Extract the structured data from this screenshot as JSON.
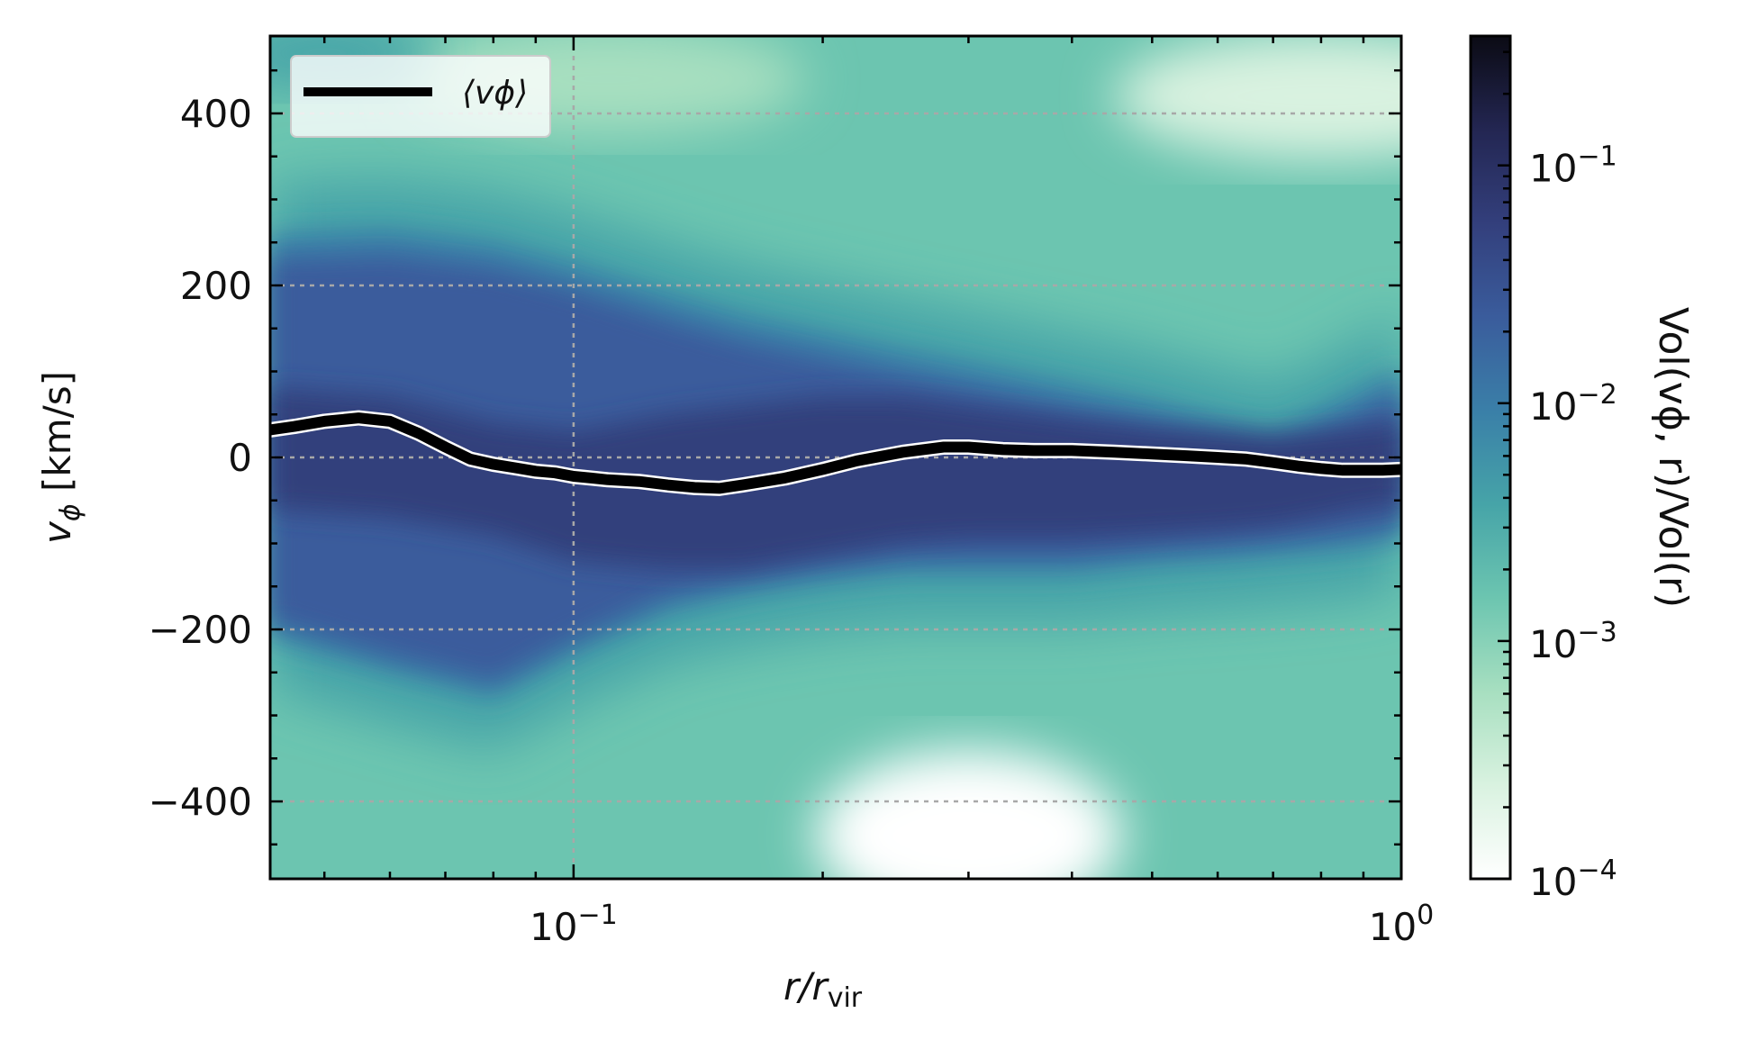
{
  "chart_data": {
    "type": "heatmap",
    "xscale": "log",
    "xlim": [
      0.043,
      1.0
    ],
    "ylim": [
      -490,
      490
    ],
    "x_ticks": [
      {
        "value": 0.1,
        "base": "10",
        "exp": "−1"
      },
      {
        "value": 1.0,
        "base": "10",
        "exp": "0"
      }
    ],
    "y_ticks": [
      {
        "value": 400,
        "label": "400"
      },
      {
        "value": 200,
        "label": "200"
      },
      {
        "value": 0,
        "label": "0"
      },
      {
        "value": -200,
        "label": "−200"
      },
      {
        "value": -400,
        "label": "−400"
      }
    ],
    "grid": true,
    "xlabel": {
      "main": "r/r",
      "sub": "vir"
    },
    "ylabel": {
      "main": "v",
      "sub": "ϕ",
      "unit": " [km/s]"
    },
    "colorbar": {
      "scale": "log",
      "range": [
        0.0001,
        0.35
      ],
      "ticks": [
        {
          "value": 0.0001,
          "base": "10",
          "exp": "−4"
        },
        {
          "value": 0.001,
          "base": "10",
          "exp": "−3"
        },
        {
          "value": 0.01,
          "base": "10",
          "exp": "−2"
        },
        {
          "value": 0.1,
          "base": "10",
          "exp": "−1"
        }
      ],
      "label": "Vol(vϕ, r)/Vol(r)",
      "colors": [
        "#ffffff",
        "#d9f2e0",
        "#a7dfc0",
        "#6cc5b0",
        "#46a4a8",
        "#3a7fa8",
        "#3a5c9c",
        "#333f7c",
        "#232652",
        "#0b0b14"
      ]
    },
    "band": {
      "description_free": true,
      "x": [
        0.043,
        0.06,
        0.08,
        0.1,
        0.13,
        0.16,
        0.2,
        0.25,
        0.3,
        0.4,
        0.5,
        0.6,
        0.7,
        0.8,
        0.9,
        1.0
      ],
      "upper": [
        260,
        265,
        250,
        225,
        190,
        165,
        145,
        125,
        110,
        85,
        65,
        45,
        30,
        55,
        80,
        105
      ],
      "lower": [
        -210,
        -250,
        -280,
        -230,
        -180,
        -160,
        -145,
        -135,
        -135,
        -135,
        -125,
        -120,
        -115,
        -110,
        -105,
        -95
      ],
      "core_upper": [
        80,
        70,
        40,
        30,
        50,
        60,
        70,
        70,
        60,
        45,
        35,
        30,
        25,
        30,
        35,
        40
      ],
      "core_lower": [
        -60,
        -70,
        -90,
        -120,
        -130,
        -130,
        -115,
        -100,
        -95,
        -95,
        -90,
        -85,
        -80,
        -70,
        -60,
        -55
      ]
    },
    "series": [
      {
        "name": "⟨vϕ⟩",
        "color": "#000000",
        "x": [
          0.043,
          0.046,
          0.05,
          0.055,
          0.06,
          0.065,
          0.07,
          0.075,
          0.08,
          0.085,
          0.09,
          0.095,
          0.1,
          0.105,
          0.11,
          0.12,
          0.13,
          0.14,
          0.15,
          0.16,
          0.18,
          0.2,
          0.22,
          0.25,
          0.28,
          0.3,
          0.33,
          0.36,
          0.4,
          0.45,
          0.5,
          0.55,
          0.6,
          0.65,
          0.7,
          0.75,
          0.8,
          0.85,
          0.9,
          0.95,
          1.0
        ],
        "y": [
          32,
          36,
          42,
          46,
          42,
          28,
          12,
          -2,
          -8,
          -12,
          -16,
          -18,
          -22,
          -24,
          -26,
          -28,
          -32,
          -35,
          -36,
          -32,
          -24,
          -14,
          -4,
          6,
          12,
          12,
          9,
          8,
          8,
          6,
          4,
          2,
          0,
          -2,
          -6,
          -10,
          -13,
          -15,
          -15,
          -15,
          -14
        ]
      }
    ],
    "legend": {
      "position": "top-left"
    }
  }
}
